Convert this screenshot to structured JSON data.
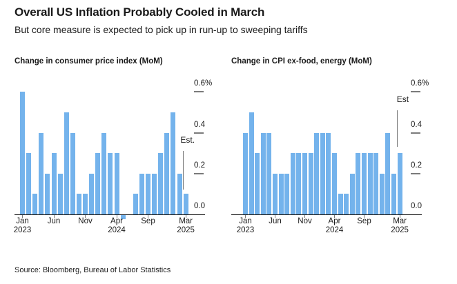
{
  "header": {
    "title": "Overall US Inflation Probably Cooled in March",
    "subtitle": "But core measure is expected to pick up in run-up to sweeping tariffs"
  },
  "source": "Source: Bloomberg, Bureau of Labor Statistics",
  "colors": {
    "bar": "#74B3EC",
    "axis": "#1A1A1A",
    "tick_gray": "#7A7A7A",
    "text": "#1A1A1A"
  },
  "chart_data": [
    {
      "type": "bar",
      "title": "Change in consumer price index (MoM)",
      "unit": "%",
      "x": [
        "Jan 2023",
        "Feb 2023",
        "Mar 2023",
        "Apr 2023",
        "May 2023",
        "Jun 2023",
        "Jul 2023",
        "Aug 2023",
        "Sep 2023",
        "Oct 2023",
        "Nov 2023",
        "Dec 2023",
        "Jan 2024",
        "Feb 2024",
        "Mar 2024",
        "Apr 2024",
        "May 2024",
        "Jun 2024",
        "Jul 2024",
        "Aug 2024",
        "Sep 2024",
        "Oct 2024",
        "Nov 2024",
        "Dec 2024",
        "Jan 2025",
        "Feb 2025",
        "Mar 2025"
      ],
      "values": [
        0.6,
        0.3,
        0.1,
        0.4,
        0.2,
        0.3,
        0.2,
        0.5,
        0.4,
        0.1,
        0.1,
        0.2,
        0.3,
        0.4,
        0.3,
        0.3,
        -0.02,
        0.0,
        0.1,
        0.2,
        0.2,
        0.2,
        0.3,
        0.4,
        0.5,
        0.2,
        0.1
      ],
      "ylim": [
        0,
        0.7
      ],
      "grid": false,
      "legend": "none",
      "yticks": [
        {
          "label": "0.6%",
          "value": 0.6
        },
        {
          "label": "0.4",
          "value": 0.4
        },
        {
          "label": "0.2",
          "value": 0.2
        },
        {
          "label": "0.0",
          "value": 0.0
        }
      ],
      "xticks": [
        {
          "index": 0,
          "line1": "Jan",
          "line2": "2023"
        },
        {
          "index": 5,
          "line1": "Jun",
          "line2": ""
        },
        {
          "index": 10,
          "line1": "Nov",
          "line2": ""
        },
        {
          "index": 15,
          "line1": "Apr",
          "line2": "2024"
        },
        {
          "index": 20,
          "line1": "Sep",
          "line2": ""
        },
        {
          "index": 26,
          "line1": "Mar",
          "line2": "2025"
        }
      ],
      "est": {
        "label": "Est.",
        "applies_to": "Mar 2025",
        "line_from": 0.12,
        "line_to": 0.31
      }
    },
    {
      "type": "bar",
      "title": "Change in CPI ex-food, energy (MoM)",
      "unit": "%",
      "x": [
        "Jan 2023",
        "Feb 2023",
        "Mar 2023",
        "Apr 2023",
        "May 2023",
        "Jun 2023",
        "Jul 2023",
        "Aug 2023",
        "Sep 2023",
        "Oct 2023",
        "Nov 2023",
        "Dec 2023",
        "Jan 2024",
        "Feb 2024",
        "Mar 2024",
        "Apr 2024",
        "May 2024",
        "Jun 2024",
        "Jul 2024",
        "Aug 2024",
        "Sep 2024",
        "Oct 2024",
        "Nov 2024",
        "Dec 2024",
        "Jan 2025",
        "Feb 2025",
        "Mar 2025"
      ],
      "values": [
        0.4,
        0.5,
        0.3,
        0.4,
        0.4,
        0.2,
        0.2,
        0.2,
        0.3,
        0.3,
        0.3,
        0.3,
        0.4,
        0.4,
        0.4,
        0.3,
        0.1,
        0.1,
        0.2,
        0.3,
        0.3,
        0.3,
        0.3,
        0.2,
        0.4,
        0.2,
        0.3
      ],
      "ylim": [
        0,
        0.7
      ],
      "grid": false,
      "legend": "none",
      "yticks": [
        {
          "label": "0.6%",
          "value": 0.6
        },
        {
          "label": "0.4",
          "value": 0.4
        },
        {
          "label": "0.2",
          "value": 0.2
        },
        {
          "label": "0.0",
          "value": 0.0
        }
      ],
      "xticks": [
        {
          "index": 0,
          "line1": "Jan",
          "line2": "2023"
        },
        {
          "index": 5,
          "line1": "Jun",
          "line2": ""
        },
        {
          "index": 10,
          "line1": "Nov",
          "line2": ""
        },
        {
          "index": 15,
          "line1": "Apr",
          "line2": "2024"
        },
        {
          "index": 20,
          "line1": "Sep",
          "line2": ""
        },
        {
          "index": 26,
          "line1": "Mar",
          "line2": "2025"
        }
      ],
      "est": {
        "label": "Est",
        "applies_to": "Mar 2025",
        "line_from": 0.33,
        "line_to": 0.51
      }
    }
  ]
}
